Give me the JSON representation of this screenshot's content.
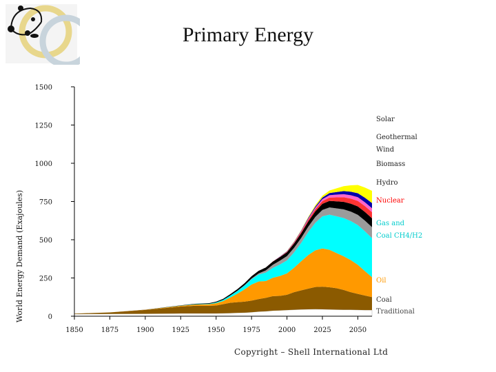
{
  "title": "Primary Energy",
  "copyright": "Copyright – Shell International Ltd",
  "colors": {
    "background": "#ffffff",
    "axis": "#000000"
  },
  "chart_data": {
    "type": "area",
    "stacked": true,
    "title": "Primary Energy",
    "xlabel": "",
    "ylabel": "World Energy Demand (Exajoules)",
    "x": [
      1850,
      1875,
      1900,
      1925,
      1935,
      1945,
      1950,
      1955,
      1960,
      1965,
      1970,
      1975,
      1980,
      1985,
      1990,
      1995,
      2000,
      2005,
      2010,
      2015,
      2020,
      2025,
      2030,
      2035,
      2040,
      2045,
      2050,
      2055,
      2060
    ],
    "xticks": [
      1850,
      1875,
      1900,
      1925,
      1950,
      1975,
      2000,
      2025,
      2050
    ],
    "yticks": [
      0,
      250,
      500,
      750,
      1000,
      1250,
      1500
    ],
    "ylim": [
      0,
      1500
    ],
    "xlim": [
      1850,
      2060
    ],
    "series": [
      {
        "name": "Traditional",
        "color": "#ffffff",
        "label_color": "#444444",
        "values": [
          14,
          15,
          16,
          18,
          18,
          18,
          18,
          19,
          20,
          22,
          23,
          26,
          30,
          32,
          36,
          38,
          40,
          42,
          44,
          45,
          46,
          45,
          44,
          43,
          42,
          42,
          41,
          40,
          40
        ]
      },
      {
        "name": "Coal",
        "color": "#8b5a00",
        "label_color": "#333333",
        "values": [
          3,
          10,
          25,
          45,
          50,
          50,
          52,
          60,
          68,
          70,
          72,
          76,
          82,
          88,
          95,
          95,
          100,
          115,
          125,
          135,
          145,
          148,
          145,
          140,
          130,
          115,
          105,
          95,
          85
        ]
      },
      {
        "name": "Oil",
        "color": "#ff9900",
        "label_color": "#ff9900",
        "values": [
          0,
          0,
          1,
          5,
          8,
          10,
          15,
          20,
          35,
          55,
          80,
          105,
          115,
          110,
          120,
          130,
          140,
          160,
          190,
          220,
          240,
          250,
          245,
          230,
          220,
          210,
          190,
          160,
          130
        ]
      },
      {
        "name": "Gas and Coal CH4/H2",
        "color": "#00ffff",
        "label_color": "#00cccc",
        "values": [
          0,
          0,
          0,
          1,
          2,
          3,
          5,
          8,
          12,
          18,
          25,
          35,
          45,
          55,
          65,
          75,
          85,
          100,
          120,
          150,
          180,
          210,
          230,
          240,
          250,
          255,
          260,
          260,
          255
        ]
      },
      {
        "name": "Nuclear",
        "color": "#9b9b9b",
        "label_color": "#ff0000",
        "values": [
          0,
          0,
          0,
          0,
          0,
          0,
          0,
          0,
          0,
          1,
          2,
          4,
          8,
          14,
          20,
          25,
          28,
          30,
          32,
          35,
          38,
          42,
          47,
          52,
          57,
          62,
          67,
          70,
          72
        ]
      },
      {
        "name": "Hydro",
        "color": "#000000",
        "label_color": "#222222",
        "values": [
          0,
          0,
          1,
          2,
          3,
          4,
          5,
          7,
          9,
          11,
          13,
          15,
          17,
          19,
          21,
          23,
          25,
          28,
          31,
          34,
          37,
          40,
          43,
          46,
          49,
          52,
          55,
          57,
          58
        ]
      },
      {
        "name": "Biomass",
        "color": "#ff3333",
        "label_color": "#222222",
        "values": [
          0,
          0,
          0,
          0,
          0,
          0,
          0,
          0,
          0,
          0,
          0,
          0,
          0,
          0,
          1,
          2,
          3,
          5,
          8,
          11,
          14,
          18,
          22,
          26,
          30,
          33,
          36,
          38,
          40
        ]
      },
      {
        "name": "Wind",
        "color": "#ff66cc",
        "label_color": "#222222",
        "values": [
          0,
          0,
          0,
          0,
          0,
          0,
          0,
          0,
          0,
          0,
          0,
          0,
          0,
          0,
          0,
          1,
          2,
          3,
          5,
          7,
          9,
          12,
          15,
          18,
          20,
          22,
          24,
          25,
          26
        ]
      },
      {
        "name": "Geothermal",
        "color": "#0000aa",
        "label_color": "#222222",
        "values": [
          0,
          0,
          0,
          0,
          0,
          0,
          0,
          0,
          0,
          0,
          0,
          0,
          0,
          0,
          0,
          1,
          2,
          3,
          4,
          6,
          8,
          11,
          14,
          17,
          20,
          23,
          26,
          30,
          34
        ]
      },
      {
        "name": "Solar",
        "color": "#ffff00",
        "label_color": "#222222",
        "values": [
          0,
          0,
          0,
          0,
          0,
          0,
          0,
          0,
          0,
          0,
          0,
          0,
          0,
          0,
          0,
          0,
          1,
          2,
          3,
          5,
          8,
          12,
          17,
          24,
          32,
          42,
          54,
          66,
          80
        ]
      }
    ]
  }
}
